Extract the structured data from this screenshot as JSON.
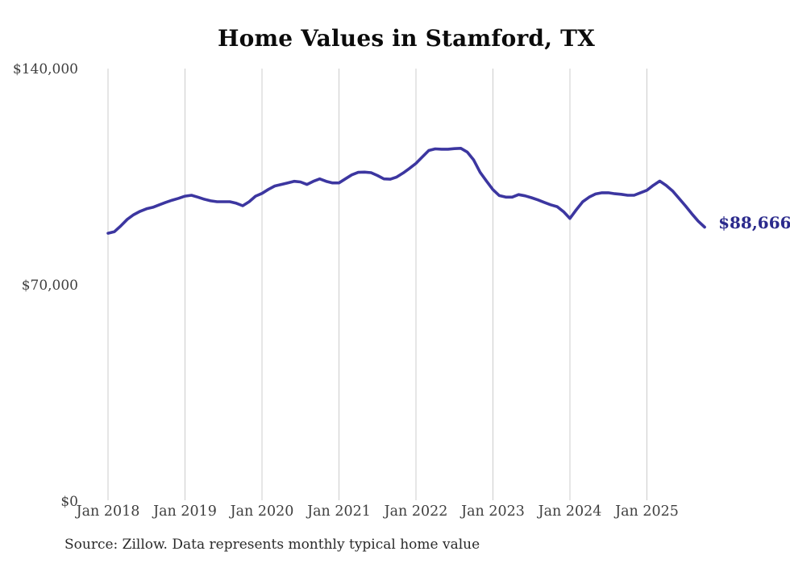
{
  "chart": {
    "title": "Home Values in Stamford, TX",
    "end_label": "$88,666",
    "source": "Source: Zillow. Data represents monthly typical home value",
    "line_color": "#3c36a0",
    "end_label_color": "#2b2a8c",
    "grid_color": "#cccccc",
    "axis_text_color": "#3f3f3f"
  },
  "chart_data": {
    "type": "line",
    "title": "Home Values in Stamford, TX",
    "series_name": "Monthly typical home value",
    "x_tick_labels": [
      "Jan 2018",
      "Jan 2019",
      "Jan 2020",
      "Jan 2021",
      "Jan 2022",
      "Jan 2023",
      "Jan 2024",
      "Jan 2025"
    ],
    "y_ticks": [
      0,
      70000,
      140000
    ],
    "y_tick_labels": [
      "$0",
      "$70,000",
      "$140,000"
    ],
    "ylim": [
      0,
      140000
    ],
    "grid": "vertical-yearly",
    "legend_position": "none",
    "end_value": 88666,
    "months": [
      "2018-01",
      "2018-02",
      "2018-03",
      "2018-04",
      "2018-05",
      "2018-06",
      "2018-07",
      "2018-08",
      "2018-09",
      "2018-10",
      "2018-11",
      "2018-12",
      "2019-01",
      "2019-02",
      "2019-03",
      "2019-04",
      "2019-05",
      "2019-06",
      "2019-07",
      "2019-08",
      "2019-09",
      "2019-10",
      "2019-11",
      "2019-12",
      "2020-01",
      "2020-02",
      "2020-03",
      "2020-04",
      "2020-05",
      "2020-06",
      "2020-07",
      "2020-08",
      "2020-09",
      "2020-10",
      "2020-11",
      "2020-12",
      "2021-01",
      "2021-02",
      "2021-03",
      "2021-04",
      "2021-05",
      "2021-06",
      "2021-07",
      "2021-08",
      "2021-09",
      "2021-10",
      "2021-11",
      "2021-12",
      "2022-01",
      "2022-02",
      "2022-03",
      "2022-04",
      "2022-05",
      "2022-06",
      "2022-07",
      "2022-08",
      "2022-09",
      "2022-10",
      "2022-11",
      "2022-12",
      "2023-01",
      "2023-02",
      "2023-03",
      "2023-04",
      "2023-05",
      "2023-06",
      "2023-07",
      "2023-08",
      "2023-09",
      "2023-10",
      "2023-11",
      "2023-12",
      "2024-01",
      "2024-02",
      "2024-03",
      "2024-04",
      "2024-05",
      "2024-06",
      "2024-07",
      "2024-08",
      "2024-09",
      "2024-10",
      "2024-11",
      "2024-12",
      "2025-01",
      "2025-02",
      "2025-03",
      "2025-04",
      "2025-05",
      "2025-06",
      "2025-07",
      "2025-08",
      "2025-09",
      "2025-10"
    ],
    "values": [
      86700,
      87200,
      89100,
      91200,
      92700,
      93800,
      94600,
      95100,
      95900,
      96700,
      97400,
      98000,
      98700,
      99000,
      98400,
      97700,
      97200,
      96900,
      96900,
      96900,
      96400,
      95600,
      96900,
      98700,
      99600,
      100900,
      102000,
      102500,
      103000,
      103500,
      103300,
      102500,
      103500,
      104300,
      103500,
      103000,
      103000,
      104300,
      105600,
      106400,
      106500,
      106300,
      105400,
      104300,
      104200,
      104900,
      106200,
      107700,
      109300,
      111400,
      113500,
      114000,
      113900,
      113900,
      114100,
      114200,
      113000,
      110400,
      106400,
      103600,
      100800,
      98900,
      98400,
      98400,
      99200,
      98800,
      98200,
      97500,
      96700,
      95900,
      95300,
      93700,
      91500,
      94300,
      96900,
      98400,
      99400,
      99800,
      99800,
      99500,
      99300,
      99000,
      99000,
      99800,
      100600,
      102200,
      103600,
      102200,
      100400,
      98000,
      95600,
      93000,
      90600,
      88666
    ]
  }
}
